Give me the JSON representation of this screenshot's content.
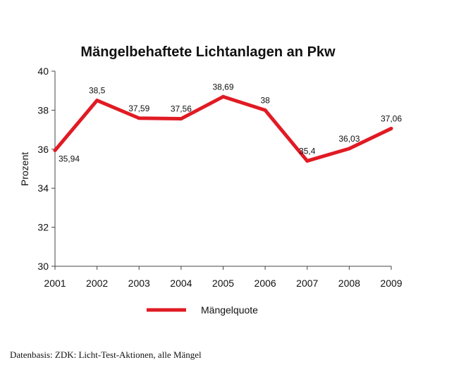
{
  "chart_data": {
    "type": "line",
    "title": "Mängelbehaftete Lichtanlagen an Pkw",
    "xlabel": "",
    "ylabel": "Prozent",
    "categories": [
      "2001",
      "2002",
      "2003",
      "2004",
      "2005",
      "2006",
      "2007",
      "2008",
      "2009"
    ],
    "series": [
      {
        "name": "Mängelquote",
        "values": [
          35.94,
          38.5,
          37.59,
          37.56,
          38.69,
          38,
          35.4,
          36.03,
          37.06
        ],
        "labels": [
          "35,94",
          "38,5",
          "37,59",
          "37,56",
          "38,69",
          "38",
          "35,4",
          "36,03",
          "37,06"
        ],
        "color": "#e01b24"
      }
    ],
    "ylim": [
      30,
      40
    ],
    "yticks": [
      30,
      32,
      34,
      36,
      38,
      40
    ],
    "grid": false,
    "legend_position": "bottom"
  },
  "source_note": "Datenbasis: ZDK: Licht-Test-Aktionen, alle Mängel"
}
